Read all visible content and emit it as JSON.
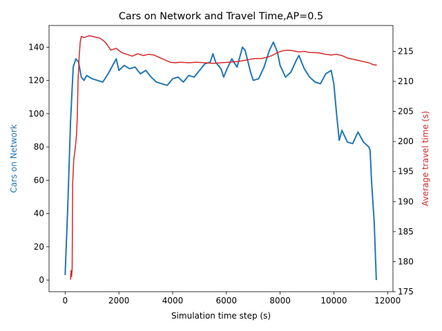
{
  "chart_data": {
    "type": "line",
    "title": "Cars on Network and Travel Time,AP=0.5",
    "xlabel": "Simulation time step (s)",
    "xlim": [
      -600,
      12200
    ],
    "xticks": [
      0,
      2000,
      4000,
      6000,
      8000,
      10000,
      12000
    ],
    "left_axis": {
      "label": "Cars on Network",
      "color": "#1f77b4",
      "ylim": [
        -7,
        153
      ],
      "ticks": [
        0,
        20,
        40,
        60,
        80,
        100,
        120,
        140
      ]
    },
    "right_axis": {
      "label": "Average travel time (s)",
      "color": "#d62728",
      "ylim": [
        175,
        219.3
      ],
      "ticks": [
        175,
        180,
        185,
        190,
        195,
        200,
        205,
        210,
        215
      ]
    },
    "grid": false,
    "legend": "none",
    "series": [
      {
        "axis": "left",
        "color": "#1f77b4",
        "points": [
          [
            0,
            3
          ],
          [
            100,
            45
          ],
          [
            200,
            95
          ],
          [
            300,
            128
          ],
          [
            400,
            133
          ],
          [
            500,
            131
          ],
          [
            600,
            122
          ],
          [
            700,
            120
          ],
          [
            800,
            123
          ],
          [
            1000,
            121
          ],
          [
            1200,
            120
          ],
          [
            1400,
            119
          ],
          [
            1600,
            124
          ],
          [
            1800,
            130
          ],
          [
            1900,
            133
          ],
          [
            2000,
            126
          ],
          [
            2200,
            129
          ],
          [
            2400,
            127
          ],
          [
            2600,
            128
          ],
          [
            2800,
            124
          ],
          [
            3000,
            126
          ],
          [
            3200,
            122
          ],
          [
            3400,
            119
          ],
          [
            3600,
            118
          ],
          [
            3800,
            117
          ],
          [
            4000,
            121
          ],
          [
            4200,
            122
          ],
          [
            4400,
            119
          ],
          [
            4600,
            123
          ],
          [
            4800,
            122
          ],
          [
            5000,
            126
          ],
          [
            5200,
            130
          ],
          [
            5400,
            131
          ],
          [
            5500,
            136
          ],
          [
            5600,
            131
          ],
          [
            5800,
            127
          ],
          [
            5900,
            122
          ],
          [
            6000,
            126
          ],
          [
            6200,
            133
          ],
          [
            6400,
            128
          ],
          [
            6500,
            134
          ],
          [
            6600,
            140
          ],
          [
            6700,
            138
          ],
          [
            6900,
            125
          ],
          [
            7000,
            120
          ],
          [
            7200,
            121
          ],
          [
            7400,
            128
          ],
          [
            7600,
            138
          ],
          [
            7750,
            143
          ],
          [
            7900,
            137
          ],
          [
            8000,
            129
          ],
          [
            8200,
            122
          ],
          [
            8400,
            125
          ],
          [
            8600,
            132
          ],
          [
            8700,
            135
          ],
          [
            8900,
            127
          ],
          [
            9100,
            122
          ],
          [
            9300,
            119
          ],
          [
            9500,
            118
          ],
          [
            9700,
            124
          ],
          [
            9900,
            126
          ],
          [
            10000,
            118
          ],
          [
            10100,
            100
          ],
          [
            10200,
            84
          ],
          [
            10300,
            90
          ],
          [
            10500,
            83
          ],
          [
            10700,
            82
          ],
          [
            10900,
            89
          ],
          [
            11100,
            83
          ],
          [
            11300,
            80
          ],
          [
            11350,
            78
          ],
          [
            11400,
            60
          ],
          [
            11500,
            35
          ],
          [
            11580,
            0
          ]
        ]
      },
      {
        "axis": "right",
        "color": "#d62728",
        "points": [
          [
            200,
            177
          ],
          [
            220,
            178.5
          ],
          [
            240,
            177.5
          ],
          [
            260,
            179
          ],
          [
            280,
            193
          ],
          [
            320,
            197
          ],
          [
            380,
            199
          ],
          [
            420,
            201
          ],
          [
            450,
            204
          ],
          [
            480,
            210
          ],
          [
            520,
            214
          ],
          [
            560,
            216.5
          ],
          [
            600,
            217.5
          ],
          [
            700,
            217.3
          ],
          [
            900,
            217.6
          ],
          [
            1100,
            217.4
          ],
          [
            1300,
            217.2
          ],
          [
            1500,
            216.5
          ],
          [
            1700,
            215.2
          ],
          [
            1900,
            215.5
          ],
          [
            2100,
            214.8
          ],
          [
            2300,
            214.5
          ],
          [
            2500,
            214.2
          ],
          [
            2700,
            214.6
          ],
          [
            2900,
            214.3
          ],
          [
            3100,
            214.5
          ],
          [
            3300,
            214.4
          ],
          [
            3500,
            214
          ],
          [
            3700,
            213.6
          ],
          [
            3900,
            213.2
          ],
          [
            4100,
            213.1
          ],
          [
            4300,
            213.2
          ],
          [
            4600,
            213.1
          ],
          [
            4900,
            213.2
          ],
          [
            5200,
            213.1
          ],
          [
            5500,
            213
          ],
          [
            5800,
            213.1
          ],
          [
            6100,
            213.2
          ],
          [
            6400,
            213.3
          ],
          [
            6700,
            213.5
          ],
          [
            6900,
            213.7
          ],
          [
            7100,
            213.8
          ],
          [
            7300,
            213.8
          ],
          [
            7500,
            214
          ],
          [
            7700,
            214.3
          ],
          [
            7900,
            214.8
          ],
          [
            8100,
            215.1
          ],
          [
            8300,
            215.2
          ],
          [
            8500,
            215.1
          ],
          [
            8700,
            214.9
          ],
          [
            8900,
            215
          ],
          [
            9100,
            214.8
          ],
          [
            9300,
            214.8
          ],
          [
            9500,
            214.7
          ],
          [
            9700,
            214.5
          ],
          [
            9900,
            214.4
          ],
          [
            10100,
            214.5
          ],
          [
            10300,
            214.3
          ],
          [
            10500,
            213.9
          ],
          [
            10700,
            213.7
          ],
          [
            10900,
            213.5
          ],
          [
            11100,
            213.3
          ],
          [
            11300,
            213.1
          ],
          [
            11450,
            212.8
          ],
          [
            11600,
            212.7
          ]
        ]
      }
    ]
  }
}
